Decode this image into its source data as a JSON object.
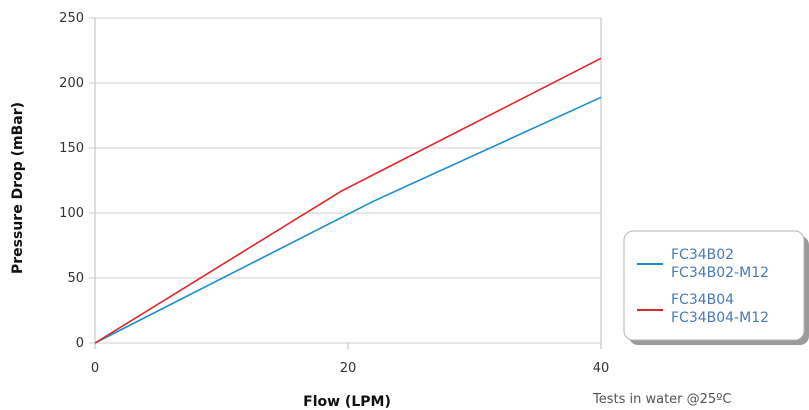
{
  "chart_data": {
    "type": "line",
    "xlabel": "Flow (LPM)",
    "ylabel": "Pressure Drop (mBar)",
    "xlim": [
      0,
      40
    ],
    "ylim": [
      0,
      250
    ],
    "xticks": [
      0,
      20,
      40
    ],
    "yticks": [
      0,
      50,
      100,
      150,
      200,
      250
    ],
    "grid": "horizontal",
    "legend_position": "bottom-right",
    "series": [
      {
        "legend": [
          "FC34B02",
          "FC34B02-M12"
        ],
        "color": "#1a8fd0",
        "points": [
          [
            0,
            0
          ],
          [
            22,
            109
          ],
          [
            40,
            189
          ]
        ]
      },
      {
        "legend": [
          "FC34B04",
          "FC34B04-M12"
        ],
        "color": "#e0262b",
        "points": [
          [
            0,
            0
          ],
          [
            19.5,
            117
          ],
          [
            40,
            219
          ]
        ]
      }
    ],
    "annotation": "Tests in water @25ºC"
  }
}
